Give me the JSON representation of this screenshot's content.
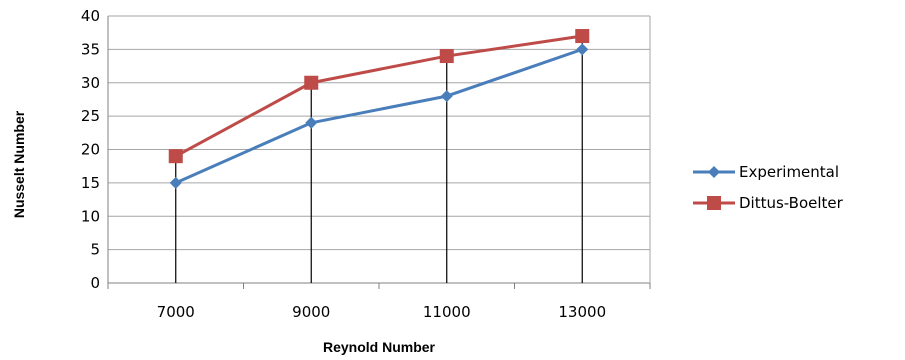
{
  "chart_data": {
    "type": "line",
    "categories": [
      "7000",
      "9000",
      "11000",
      "13000"
    ],
    "series": [
      {
        "name": "Experimental",
        "values": [
          15,
          24,
          28,
          35
        ],
        "color": "#4a7ebb",
        "marker": "diamond"
      },
      {
        "name": "Dittus-Boelter",
        "values": [
          19,
          30,
          34,
          37
        ],
        "color": "#be4b48",
        "marker": "square"
      }
    ],
    "xlabel": "Reynold Number",
    "ylabel": "Nusselt Number",
    "ylim": [
      0,
      40
    ],
    "yticks": [
      0,
      5,
      10,
      15,
      20,
      25,
      30,
      35,
      40
    ],
    "grid": true,
    "drop_lines": true,
    "legend": "right"
  }
}
